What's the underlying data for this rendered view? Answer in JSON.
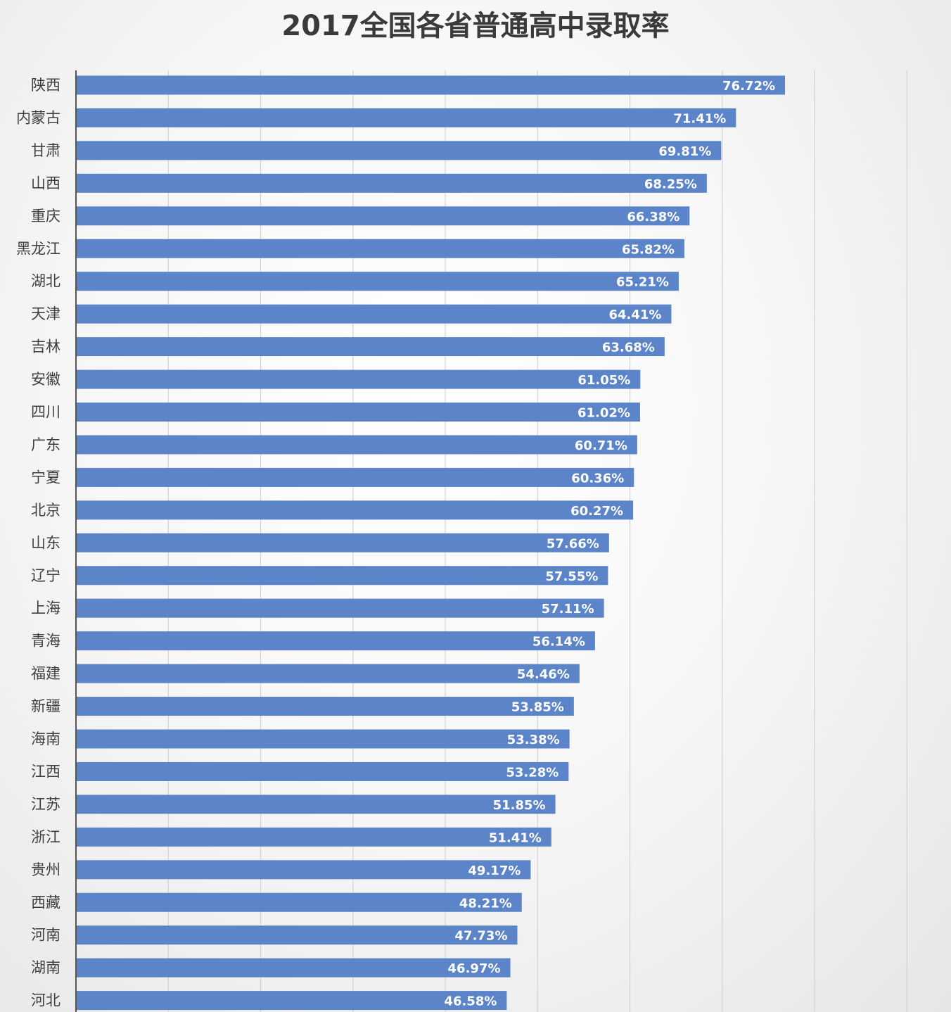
{
  "chart_data": {
    "type": "bar",
    "orientation": "horizontal",
    "title": "2017全国各省普通高中录取率",
    "xlabel": "",
    "ylabel": "",
    "xlim": [
      0,
      90
    ],
    "grid": true,
    "value_suffix": "%",
    "categories": [
      "陕西",
      "内蒙古",
      "甘肃",
      "山西",
      "重庆",
      "黑龙江",
      "湖北",
      "天津",
      "吉林",
      "安徽",
      "四川",
      "广东",
      "宁夏",
      "北京",
      "山东",
      "辽宁",
      "上海",
      "青海",
      "福建",
      "新疆",
      "海南",
      "江西",
      "江苏",
      "浙江",
      "贵州",
      "西藏",
      "河南",
      "湖南",
      "河北"
    ],
    "values": [
      76.72,
      71.41,
      69.81,
      68.25,
      66.38,
      65.82,
      65.21,
      64.41,
      63.68,
      61.05,
      61.02,
      60.71,
      60.36,
      60.27,
      57.66,
      57.55,
      57.11,
      56.14,
      54.46,
      53.85,
      53.38,
      53.28,
      51.85,
      51.41,
      49.17,
      48.21,
      47.73,
      46.97,
      46.58
    ],
    "labels": [
      "76.72%",
      "71.41%",
      "69.81%",
      "68.25%",
      "66.38%",
      "65.82%",
      "65.21%",
      "64.41%",
      "63.68%",
      "61.05%",
      "61.02%",
      "60.71%",
      "60.36%",
      "60.27%",
      "57.66%",
      "57.55%",
      "57.11%",
      "56.14%",
      "54.46%",
      "53.85%",
      "53.38%",
      "53.28%",
      "51.85%",
      "51.41%",
      "49.17%",
      "48.21%",
      "47.73%",
      "46.97%",
      "46.58%"
    ]
  },
  "colors": {
    "bar": "#5b84c9",
    "label": "#ffffff",
    "grid": "#d3d3d3"
  }
}
